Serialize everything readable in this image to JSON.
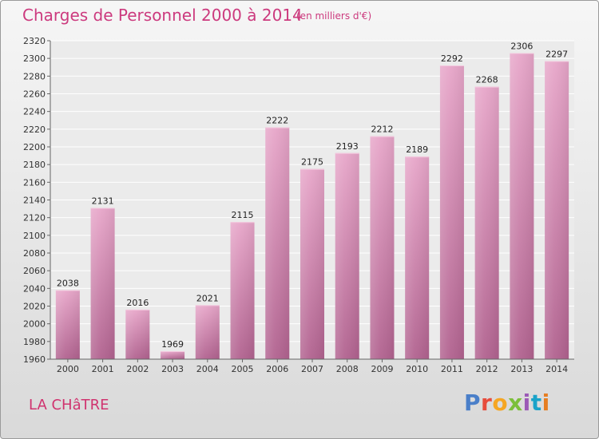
{
  "header": {
    "title": "Charges de Personnel 2000 à 2014",
    "subtitle": "(en milliers d'€)"
  },
  "footer": {
    "town": "LA CHâTRE",
    "logo_text": "Proxiti",
    "logo_colors": [
      "#4a7fc9",
      "#e74c3c",
      "#f5a623",
      "#7bbf3a",
      "#9b59b6",
      "#1aa3c9",
      "#e67e22"
    ]
  },
  "chart_data": {
    "type": "bar",
    "title": "Charges de Personnel 2000 à 2014",
    "subtitle": "(en milliers d'€)",
    "categories": [
      "2000",
      "2001",
      "2002",
      "2003",
      "2004",
      "2005",
      "2006",
      "2007",
      "2008",
      "2009",
      "2010",
      "2011",
      "2012",
      "2013",
      "2014"
    ],
    "values": [
      2038,
      2131,
      2016,
      1969,
      2021,
      2115,
      2222,
      2175,
      2193,
      2212,
      2189,
      2292,
      2268,
      2306,
      2297
    ],
    "ylim": [
      1960,
      2320
    ],
    "yticks": [
      1960,
      1980,
      2000,
      2020,
      2040,
      2060,
      2080,
      2100,
      2120,
      2140,
      2160,
      2180,
      2200,
      2220,
      2240,
      2260,
      2280,
      2300,
      2320
    ],
    "grid": true,
    "bar_color": "#c9709e",
    "xlabel": "",
    "ylabel": ""
  }
}
